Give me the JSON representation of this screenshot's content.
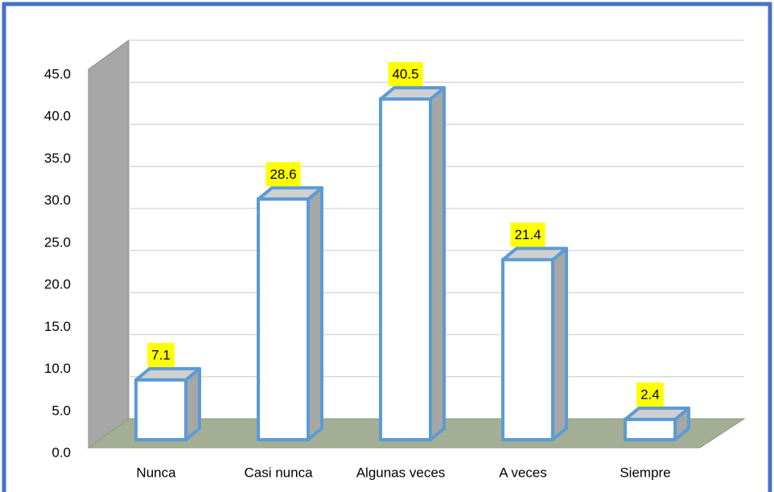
{
  "chart_data": {
    "type": "bar3d",
    "categories": [
      "Nunca",
      "Casi nunca",
      "Algunas veces",
      "A veces",
      "Siempre"
    ],
    "values": [
      7.1,
      28.6,
      40.5,
      21.4,
      2.4
    ],
    "ylim": [
      0,
      45
    ],
    "yticks": [
      {
        "value": 0,
        "label": "0.0"
      },
      {
        "value": 5,
        "label": "5.0"
      },
      {
        "value": 10,
        "label": "10.0"
      },
      {
        "value": 15,
        "label": "15.0"
      },
      {
        "value": 20,
        "label": "20.0"
      },
      {
        "value": 25,
        "label": "25.0"
      },
      {
        "value": 30,
        "label": "30.0"
      },
      {
        "value": 35,
        "label": "35.0"
      },
      {
        "value": 40,
        "label": "40.0"
      },
      {
        "value": 45,
        "label": "45.0"
      }
    ],
    "grid": true,
    "color": "#ffffff",
    "edge_color": "#5b9bd5",
    "label_background": "#ffff00"
  }
}
